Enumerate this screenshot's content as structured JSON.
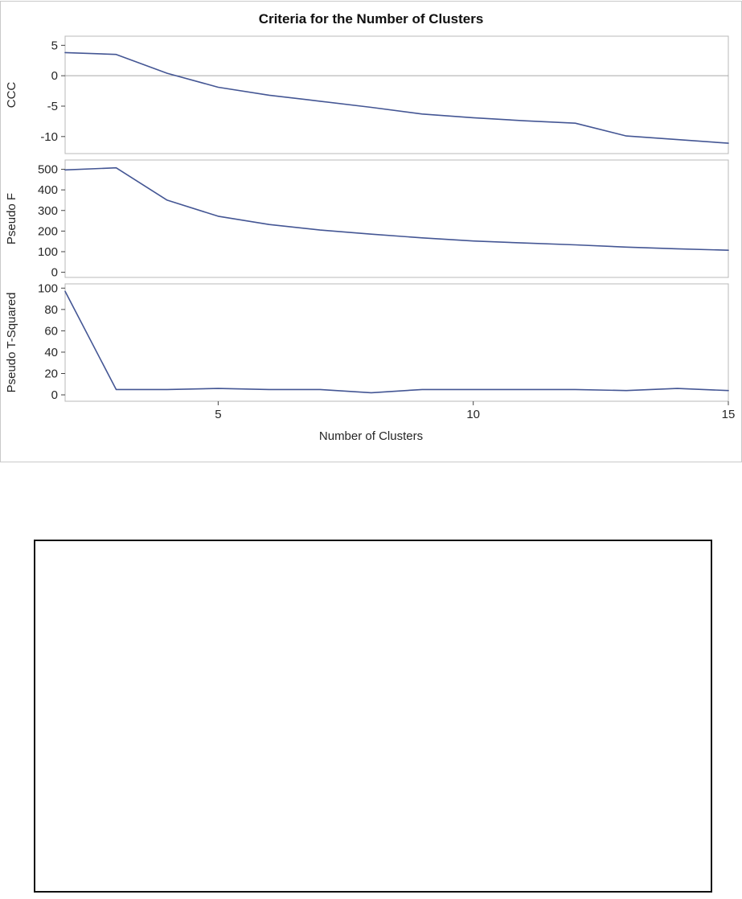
{
  "figure": {
    "title": "Criteria for the Number of Clusters",
    "xlabel": "Number of Clusters"
  },
  "colors": {
    "line": "#445694",
    "panel_border": "#b8b8b8",
    "figure_border": "#c9c9c9",
    "reference_line": "#a6a6a6",
    "tick_text": "#262626",
    "frame_border": "#111111"
  },
  "chart_data": {
    "type": "line",
    "title": "Criteria for the Number of Clusters",
    "xlabel": "Number of Clusters",
    "x": [
      2,
      3,
      4,
      5,
      6,
      7,
      8,
      9,
      10,
      11,
      12,
      13,
      14,
      15
    ],
    "xticks": [
      5,
      10,
      15
    ],
    "xlim": [
      2,
      15
    ],
    "legend": "none",
    "grid": false,
    "panels": [
      {
        "ylabel": "CCC",
        "values": [
          3.8,
          3.5,
          0.4,
          -1.9,
          -3.2,
          -4.2,
          -5.2,
          -6.3,
          -6.9,
          -7.4,
          -7.8,
          -9.9,
          -10.5,
          -11.1
        ],
        "yticks": [
          5,
          0,
          -5,
          -10
        ],
        "ylim": [
          -12.8,
          6.5
        ],
        "reference_line": 0
      },
      {
        "ylabel": "Pseudo F",
        "values": [
          497,
          507,
          350,
          272,
          232,
          205,
          185,
          167,
          152,
          142,
          133,
          122,
          114,
          107
        ],
        "yticks": [
          0,
          100,
          200,
          300,
          400,
          500
        ],
        "ylim": [
          -25,
          545
        ],
        "reference_line": null
      },
      {
        "ylabel": "Pseudo T-Squared",
        "values": [
          97,
          5,
          5,
          6,
          5,
          5,
          2,
          5,
          5,
          5,
          5,
          4,
          6,
          4
        ],
        "yticks": [
          0,
          20,
          40,
          60,
          80,
          100
        ],
        "ylim": [
          -6,
          104
        ],
        "reference_line": null
      }
    ]
  }
}
